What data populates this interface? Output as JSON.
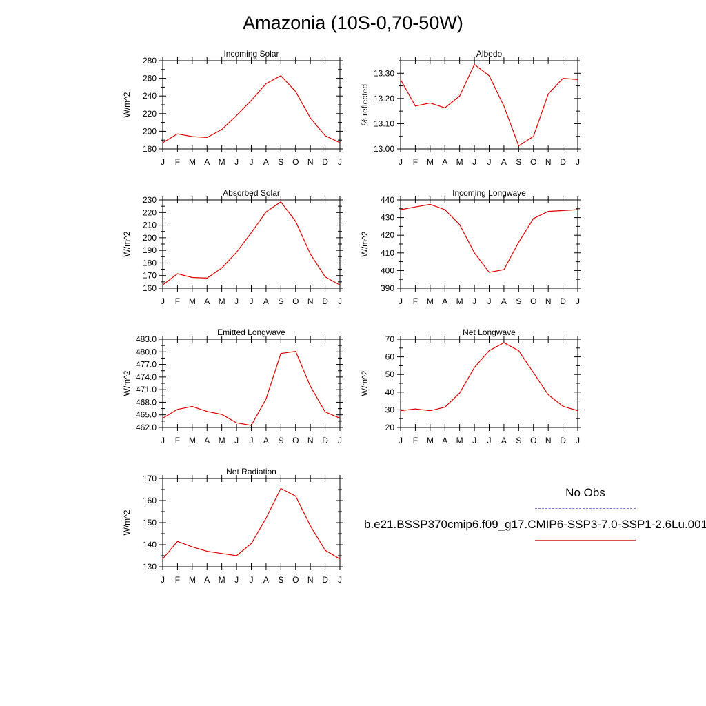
{
  "page": {
    "title": "Amazonia (10S-0,70-50W)"
  },
  "legend": {
    "obs_label": "No Obs",
    "obs_color": "#7777dd",
    "case_label": "b.e21.BSSP370cmip6.f09_g17.CMIP6-SSP3-7.0-SSP1-2.6Lu.001",
    "case_color": "#e05050"
  },
  "chart_data": [
    {
      "type": "line",
      "title": "Incoming Solar",
      "ylabel": "W/m^2",
      "x": [
        "J",
        "F",
        "M",
        "A",
        "M",
        "J",
        "J",
        "A",
        "S",
        "O",
        "N",
        "D",
        "J"
      ],
      "ylim": [
        180,
        280
      ],
      "yticks": [
        180,
        200,
        220,
        240,
        260,
        280
      ],
      "ytick_labels": [
        "180",
        "200",
        "220",
        "240",
        "260",
        "280"
      ],
      "yminor": 10,
      "series": [
        {
          "color": "#e00000",
          "values": [
            187,
            197,
            194,
            193,
            202,
            218,
            235,
            254,
            263,
            245,
            215,
            195,
            187
          ]
        }
      ]
    },
    {
      "type": "line",
      "title": "Albedo",
      "ylabel": "% reflected",
      "x": [
        "J",
        "F",
        "M",
        "A",
        "M",
        "J",
        "J",
        "A",
        "S",
        "O",
        "N",
        "D",
        "J"
      ],
      "ylim": [
        13.0,
        13.35
      ],
      "yticks": [
        13.0,
        13.1,
        13.2,
        13.3
      ],
      "ytick_labels": [
        "13.00",
        "13.10",
        "13.20",
        "13.30"
      ],
      "yminor": 0.05,
      "series": [
        {
          "color": "#e00000",
          "values": [
            13.275,
            13.17,
            13.182,
            13.163,
            13.21,
            13.335,
            13.29,
            13.17,
            13.012,
            13.05,
            13.218,
            13.28,
            13.275
          ]
        }
      ]
    },
    {
      "type": "line",
      "title": "Absorbed Solar",
      "ylabel": "W/m^2",
      "x": [
        "J",
        "F",
        "M",
        "A",
        "M",
        "J",
        "J",
        "A",
        "S",
        "O",
        "N",
        "D",
        "J"
      ],
      "ylim": [
        160,
        230
      ],
      "yticks": [
        160,
        170,
        180,
        190,
        200,
        210,
        220,
        230
      ],
      "ytick_labels": [
        "160",
        "170",
        "180",
        "190",
        "200",
        "210",
        "220",
        "230"
      ],
      "yminor": 5,
      "series": [
        {
          "color": "#e00000",
          "values": [
            162.5,
            171.5,
            168.5,
            168,
            176,
            188.5,
            204,
            220.5,
            228.5,
            213,
            187,
            169,
            162.5
          ]
        }
      ]
    },
    {
      "type": "line",
      "title": "Incoming Longwave",
      "ylabel": "W/m^2",
      "x": [
        "J",
        "F",
        "M",
        "A",
        "M",
        "J",
        "J",
        "A",
        "S",
        "O",
        "N",
        "D",
        "J"
      ],
      "ylim": [
        390,
        440
      ],
      "yticks": [
        390,
        400,
        410,
        420,
        430,
        440
      ],
      "ytick_labels": [
        "390",
        "400",
        "410",
        "420",
        "430",
        "440"
      ],
      "yminor": 5,
      "series": [
        {
          "color": "#e00000",
          "values": [
            434.5,
            436,
            437.5,
            434.5,
            426,
            410,
            399,
            400.5,
            416,
            429.5,
            433.5,
            434,
            434.5
          ]
        }
      ]
    },
    {
      "type": "line",
      "title": "Emitted Longwave",
      "ylabel": "W/m^2",
      "x": [
        "J",
        "F",
        "M",
        "A",
        "M",
        "J",
        "J",
        "A",
        "S",
        "O",
        "N",
        "D",
        "J"
      ],
      "ylim": [
        462,
        483
      ],
      "yticks": [
        462,
        465,
        468,
        471,
        474,
        477,
        480,
        483
      ],
      "ytick_labels": [
        "462.0",
        "465.0",
        "468.0",
        "471.0",
        "474.0",
        "477.0",
        "480.0",
        "483.0"
      ],
      "yminor": 1.5,
      "series": [
        {
          "color": "#e00000",
          "values": [
            464.2,
            466.3,
            467,
            465.8,
            465.1,
            463.1,
            462.5,
            468.8,
            479.6,
            480.1,
            471.8,
            465.7,
            464.2
          ]
        }
      ]
    },
    {
      "type": "line",
      "title": "Net Longwave",
      "ylabel": "W/m^2",
      "x": [
        "J",
        "F",
        "M",
        "A",
        "M",
        "J",
        "J",
        "A",
        "S",
        "O",
        "N",
        "D",
        "J"
      ],
      "ylim": [
        20,
        70
      ],
      "yticks": [
        20,
        30,
        40,
        50,
        60,
        70
      ],
      "ytick_labels": [
        "20",
        "30",
        "40",
        "50",
        "60",
        "70"
      ],
      "yminor": 5,
      "series": [
        {
          "color": "#e00000",
          "values": [
            29.5,
            30.5,
            29.5,
            31.5,
            39.5,
            54,
            63.5,
            68,
            63.5,
            51,
            38.5,
            32,
            29.5
          ]
        }
      ]
    },
    {
      "type": "line",
      "title": "Net Radiation",
      "ylabel": "W/m^2",
      "x": [
        "J",
        "F",
        "M",
        "A",
        "M",
        "J",
        "J",
        "A",
        "S",
        "O",
        "N",
        "D",
        "J"
      ],
      "ylim": [
        130,
        170
      ],
      "yticks": [
        130,
        140,
        150,
        160,
        170
      ],
      "ytick_labels": [
        "130",
        "140",
        "150",
        "160",
        "170"
      ],
      "yminor": 5,
      "series": [
        {
          "color": "#e00000",
          "values": [
            133.5,
            141.5,
            139,
            137,
            136,
            135,
            140.5,
            152,
            165.5,
            162,
            148.5,
            137.5,
            133.5
          ]
        }
      ]
    }
  ]
}
